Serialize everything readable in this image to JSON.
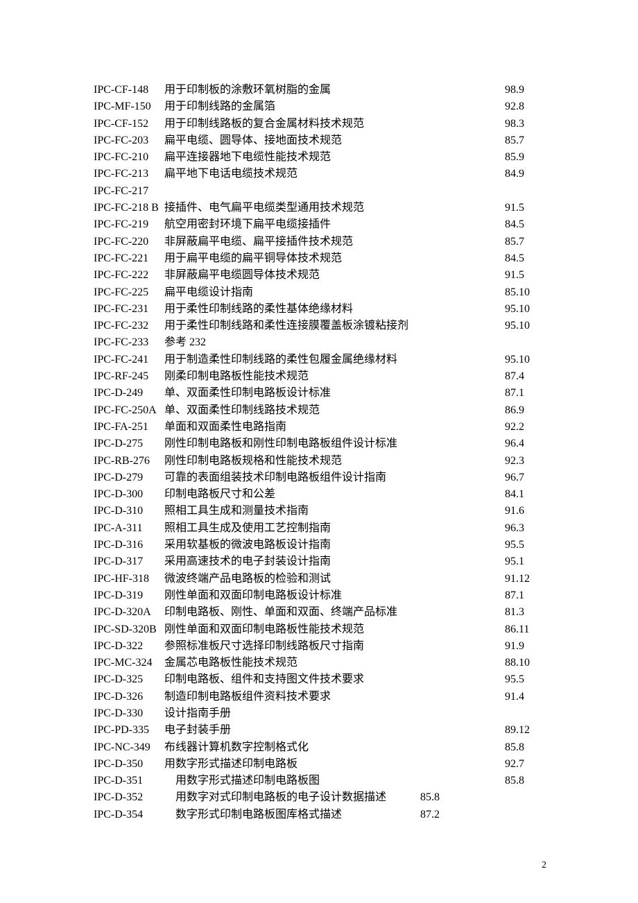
{
  "page_number": "2",
  "rows": [
    {
      "code": "IPC-CF-148",
      "desc": "用于印制板的涂敷环氧树脂的金属",
      "num": "98.9"
    },
    {
      "code": "IPC-MF-150",
      "desc": "用于印制线路的金属箔",
      "num": "92.8"
    },
    {
      "code": "IPC-CF-152",
      "desc": "用于印制线路板的复合金属材料技术规范",
      "num": "98.3"
    },
    {
      "code": "IPC-FC-203",
      "desc": "扁平电缆、圆导体、接地面技术规范",
      "num": "85.7"
    },
    {
      "code": "IPC-FC-210",
      "desc": "扁平连接器地下电缆性能技术规范",
      "num": "85.9"
    },
    {
      "code": "IPC-FC-213",
      "desc": "扁平地下电话电缆技术规范",
      "num": "84.9"
    },
    {
      "code": "IPC-FC-217",
      "desc": "",
      "num": ""
    },
    {
      "code": "IPC-FC-218 B",
      "desc": "接插件、电气扁平电缆类型通用技术规范",
      "num": "91.5"
    },
    {
      "code": "IPC-FC-219",
      "desc": "航空用密封环境下扁平电缆接插件",
      "num": "84.5"
    },
    {
      "code": "IPC-FC-220",
      "desc": "非屏蔽扁平电缆、扁平接插件技术规范",
      "num": "85.7"
    },
    {
      "code": "IPC-FC-221",
      "desc": "用于扁平电缆的扁平铜导体技术规范",
      "num": "84.5"
    },
    {
      "code": "IPC-FC-222",
      "desc": "非屏蔽扁平电缆圆导体技术规范",
      "num": "91.5"
    },
    {
      "code": "IPC-FC-225",
      "desc": "扁平电缆设计指南",
      "num": "85.10"
    },
    {
      "code": "IPC-FC-231",
      "desc": "用于柔性印制线路的柔性基体绝缘材料",
      "num": "95.10"
    },
    {
      "code": "IPC-FC-232",
      "desc": "用于柔性印制线路和柔性连接膜覆盖板涂镀粘接剂",
      "num": "95.10"
    },
    {
      "code": "IPC-FC-233",
      "desc": "参考 232",
      "num": ""
    },
    {
      "code": "IPC-FC-241",
      "desc": "用于制造柔性印制线路的柔性包履金属绝缘材料",
      "num": "95.10"
    },
    {
      "code": "IPC-RF-245",
      "desc": "刚柔印制电路板性能技术规范",
      "num": "87.4"
    },
    {
      "code": "IPC-D-249",
      "desc": "单、双面柔性印制电路板设计标准",
      "num": "87.1"
    },
    {
      "code": "IPC-FC-250A",
      "desc": "单、双面柔性印制线路技术规范",
      "num": "86.9"
    },
    {
      "code": "IPC-FA-251",
      "desc": "单面和双面柔性电路指南",
      "num": "92.2"
    },
    {
      "code": "IPC-D-275",
      "desc": "刚性印制电路板和刚性印制电路板组件设计标准",
      "num": "96.4"
    },
    {
      "code": "IPC-RB-276",
      "desc": "刚性印制电路板规格和性能技术规范",
      "num": "92.3"
    },
    {
      "code": "IPC-D-279",
      "desc": "可靠的表面组装技术印制电路板组件设计指南",
      "num": "96.7"
    },
    {
      "code": "IPC-D-300",
      "desc": "印制电路板尺寸和公差",
      "num": "84.1"
    },
    {
      "code": "IPC-D-310",
      "desc": "照相工具生成和测量技术指南",
      "num": "91.6"
    },
    {
      "code": "IPC-A-311",
      "desc": "照相工具生成及使用工艺控制指南",
      "num": "96.3"
    },
    {
      "code": "IPC-D-316",
      "desc": "采用软基板的微波电路板设计指南",
      "num": "95.5"
    },
    {
      "code": "IPC-D-317",
      "desc": "采用高速技术的电子封装设计指南",
      "num": "95.1"
    },
    {
      "code": "IPC-HF-318",
      "desc": "微波终端产品电路板的检验和测试",
      "num": "91.12"
    },
    {
      "code": "IPC-D-319",
      "desc": "刚性单面和双面印制电路板设计标准",
      "num": "87.1"
    },
    {
      "code": "IPC-D-320A",
      "desc": "印制电路板、刚性、单面和双面、终端产品标准",
      "num": "81.3"
    },
    {
      "code": "IPC-SD-320B",
      "desc": "刚性单面和双面印制电路板性能技术规范",
      "num": "86.11"
    },
    {
      "code": "IPC-D-322",
      "desc": "参照标准板尺寸选择印制线路板尺寸指南",
      "num": "91.9"
    },
    {
      "code": "IPC-MC-324",
      "desc": "金属芯电路板性能技术规范",
      "num": "88.10"
    },
    {
      "code": "IPC-D-325",
      "desc": "印制电路板、组件和支持图文件技术要求",
      "num": "95.5"
    },
    {
      "code": "IPC-D-326",
      "desc": "制造印制电路板组件资料技术要求",
      "num": "91.4"
    },
    {
      "code": "IPC-D-330",
      "desc": "设计指南手册",
      "num": ""
    },
    {
      "code": "IPC-PD-335",
      "desc": "电子封装手册",
      "num": "89.12"
    },
    {
      "code": "IPC-NC-349",
      "desc": "布线器计算机数字控制格式化",
      "num": "85.8"
    },
    {
      "code": "IPC-D-350",
      "desc": "用数字形式描述印制电路板",
      "num": "92.7"
    },
    {
      "code": "IPC-D-351",
      "desc": "用数字形式描述印制电路板图",
      "indent": 1,
      "num": "85.8"
    },
    {
      "code": "IPC-D-352",
      "desc": "用数字对式印制电路板的电子设计数据描述",
      "indent": 1,
      "num": "85.8",
      "shift": true
    },
    {
      "code": "IPC-D-354",
      "desc": "数字形式印制电路板图库格式描述",
      "indent": 1,
      "num": "87.2",
      "shift": true
    }
  ]
}
